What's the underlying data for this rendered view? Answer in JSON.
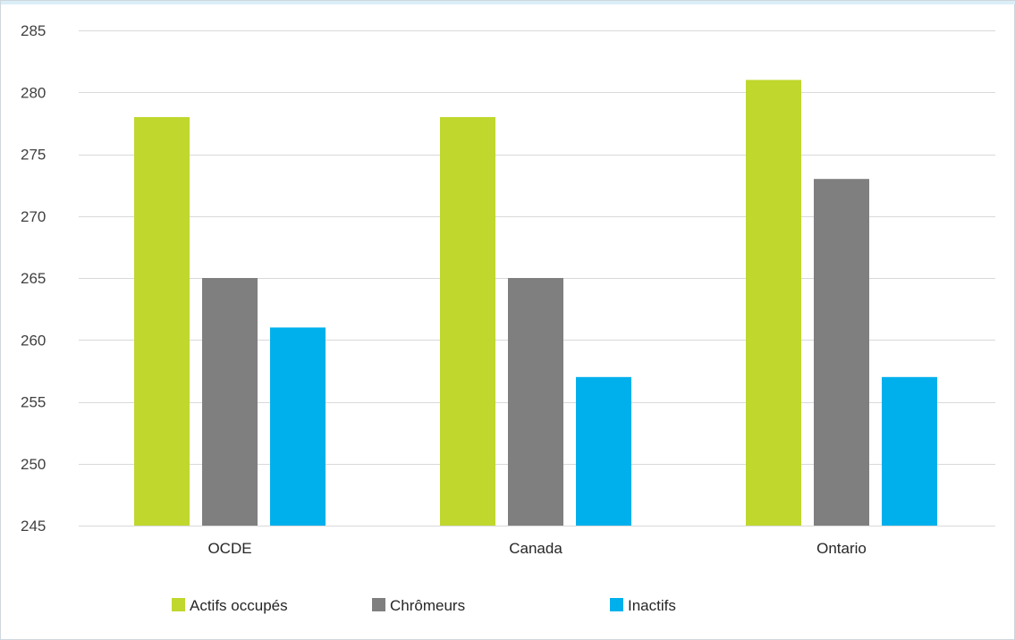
{
  "chart_data": {
    "type": "bar",
    "categories": [
      "OCDE",
      "Canada",
      "Ontario"
    ],
    "series": [
      {
        "name": "Actifs occupés",
        "color": "#c0d72e",
        "values": [
          278,
          278,
          281
        ]
      },
      {
        "name": "Chrômeurs",
        "color": "#7f7f7f",
        "values": [
          265,
          265,
          273
        ]
      },
      {
        "name": "Inactifs",
        "color": "#00b0ec",
        "values": [
          261,
          257,
          257
        ]
      }
    ],
    "yticks": [
      245,
      250,
      255,
      260,
      265,
      270,
      275,
      280,
      285
    ],
    "ylim": [
      245,
      285
    ],
    "grid": true,
    "legend_position": "bottom"
  }
}
